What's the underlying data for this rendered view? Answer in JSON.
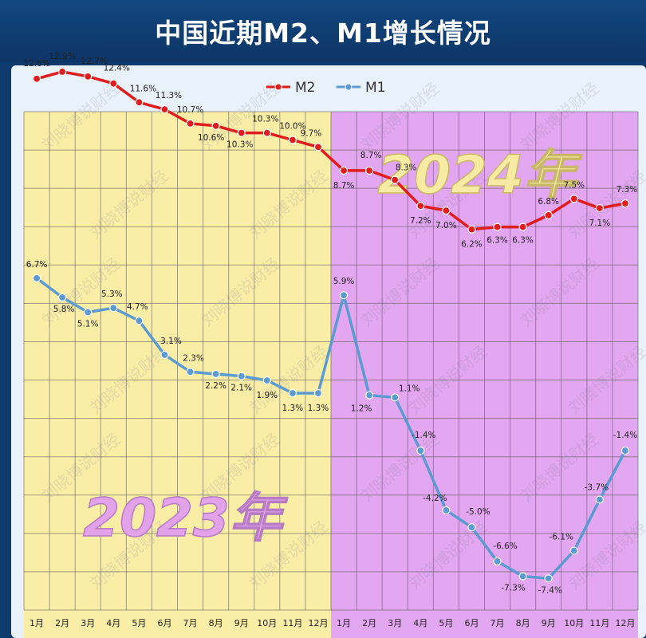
{
  "page": {
    "title": "中国近期M2、M1增长情况"
  },
  "watermark": "刘晓博说财经",
  "colors": {
    "m2": "#e01c1c",
    "m1": "#5b9bd1",
    "bg2023": "#faeda6",
    "bg2024": "#e3a6f0",
    "frame": "#e9f1fa"
  },
  "chart_data": {
    "type": "line",
    "categories": [
      "1月",
      "2月",
      "3月",
      "4月",
      "5月",
      "6月",
      "7月",
      "8月",
      "9月",
      "10月",
      "11月",
      "12月",
      "1月",
      "2月",
      "3月",
      "4月",
      "5月",
      "6月",
      "7月",
      "8月",
      "9月",
      "10月",
      "11月",
      "12月"
    ],
    "periods": [
      {
        "label": "2023年",
        "from": 0,
        "to": 11
      },
      {
        "label": "2024年",
        "from": 12,
        "to": 23
      }
    ],
    "series": [
      {
        "name": "M2",
        "color": "#e01c1c",
        "values": [
          12.6,
          12.9,
          12.7,
          12.4,
          11.6,
          11.3,
          10.7,
          10.6,
          10.3,
          10.3,
          10.0,
          9.7,
          8.7,
          8.7,
          8.3,
          7.2,
          7.0,
          6.2,
          6.3,
          6.3,
          6.8,
          7.5,
          7.1,
          7.3
        ]
      },
      {
        "name": "M1",
        "color": "#5b9bd1",
        "values": [
          6.7,
          5.8,
          5.1,
          5.3,
          4.7,
          3.1,
          2.3,
          2.2,
          2.1,
          1.9,
          1.3,
          1.3,
          5.9,
          1.2,
          1.1,
          -1.4,
          -4.2,
          -5.0,
          -6.6,
          -7.3,
          -7.4,
          -6.1,
          -3.7,
          -1.4
        ]
      }
    ],
    "ylim": [
      -9,
      14.5
    ],
    "grid": true,
    "legend_position": "top-center"
  }
}
